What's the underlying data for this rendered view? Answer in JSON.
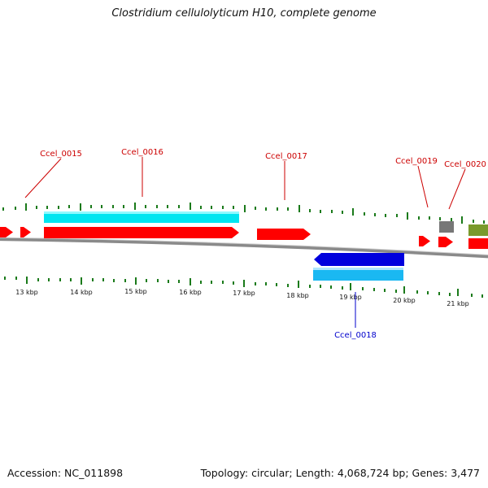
{
  "title": "Clostridium cellulolyticum H10, complete genome",
  "footer": {
    "accession": "Accession: NC_011898",
    "summary": "Topology: circular; Length: 4,068,724 bp; Genes: 3,477"
  },
  "colors": {
    "cds": "#ff0000",
    "cds_reverse": "#0000dd",
    "feature_cyan": "#00e5f0",
    "feature_blue": "#1ab8f2",
    "feature_gray": "#777777",
    "feature_olive": "#7a9a2c",
    "backbone": "#8a8a8a",
    "tick": "#1a7a1a",
    "label_forward": "#cc0000",
    "label_reverse": "#0000cc"
  },
  "scale_labels": [
    "13 kbp",
    "14 kbp",
    "15 kbp",
    "16 kbp",
    "17 kbp",
    "18 kbp",
    "19 kbp",
    "20 kbp",
    "21 kbp"
  ],
  "gene_labels": [
    {
      "name": "Ccel_0015",
      "strand": "forward"
    },
    {
      "name": "Ccel_0016",
      "strand": "forward"
    },
    {
      "name": "Ccel_0017",
      "strand": "forward"
    },
    {
      "name": "Ccel_0019",
      "strand": "forward"
    },
    {
      "name": "Ccel_0020",
      "strand": "forward"
    },
    {
      "name": "Ccel_0018",
      "strand": "reverse"
    }
  ]
}
